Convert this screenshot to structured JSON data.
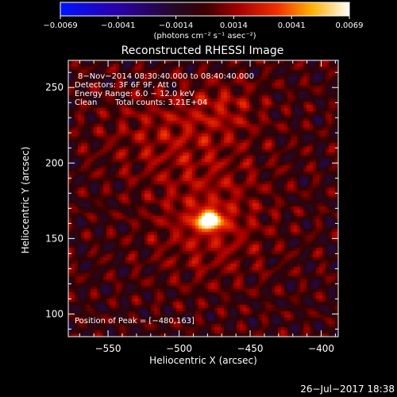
{
  "colorbar": {
    "ticks": [
      "−0.0069",
      "−0.0041",
      "−0.0014",
      "0.0014",
      "0.0041",
      "0.0069"
    ],
    "unit_label": "(photons cm⁻² s⁻¹ asec⁻²)",
    "min": -0.0069,
    "max": 0.0069
  },
  "plot": {
    "title": "Reconstructed RHESSI Image",
    "xlabel": "Heliocentric X (arcsec)",
    "ylabel": "Heliocentric Y (arcsec)",
    "xrange": [
      -578,
      -388
    ],
    "yrange": [
      85,
      268
    ],
    "xticks": [
      -550,
      -500,
      -450,
      -400
    ],
    "yticks": [
      100,
      150,
      200,
      250
    ],
    "xtick_labels": [
      "−550",
      "−500",
      "−450",
      "−400"
    ],
    "ytick_labels": [
      "100",
      "150",
      "200",
      "250"
    ]
  },
  "annotations": {
    "time_range": "8−Nov−2014 08:30:40.000 to 08:40:40.000",
    "detectors": "Detectors: 3F 6F 9F, Att 0",
    "energy": "Energy Range: 6.0 − 12.0 keV",
    "clean": "Clean",
    "total_counts": "Total counts: 3.21E+04",
    "peak": "Position of Peak = [−480,163]"
  },
  "source": {
    "peak_x": -480,
    "peak_y": 163
  },
  "footer": {
    "date": "26−Jul−2017 18:38"
  },
  "colors": {
    "background": "#000000",
    "text": "#ffffff",
    "colormap": "blue-violet-red-yellow-white"
  }
}
